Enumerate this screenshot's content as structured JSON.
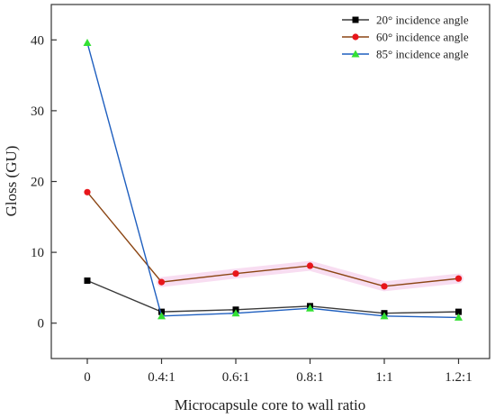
{
  "chart_data": {
    "type": "line",
    "title": "",
    "xlabel": "Microcapsule core to wall ratio",
    "ylabel": "Gloss (GU)",
    "categories": [
      "0",
      "0.4:1",
      "0.6:1",
      "0.8:1",
      "1:1",
      "1.2:1"
    ],
    "ylim": [
      -5,
      45
    ],
    "yticks": [
      0,
      10,
      20,
      30,
      40
    ],
    "grid": false,
    "legend_position": "top-right",
    "series": [
      {
        "name": "20° incidence angle",
        "values": [
          6.0,
          1.6,
          1.9,
          2.4,
          1.4,
          1.6
        ],
        "line_color": "#3a3a3a",
        "marker_color": "#000000",
        "marker": "square"
      },
      {
        "name": "60° incidence angle",
        "values": [
          18.5,
          5.8,
          7.0,
          8.1,
          5.2,
          6.3
        ],
        "line_color": "#8b4513",
        "marker_color": "#e8161b",
        "marker": "circle"
      },
      {
        "name": "85° incidence angle",
        "values": [
          39.6,
          1.0,
          1.4,
          2.1,
          1.0,
          0.8
        ],
        "line_color": "#1f5fbf",
        "marker_color": "#33e033",
        "marker": "triangle"
      }
    ]
  }
}
